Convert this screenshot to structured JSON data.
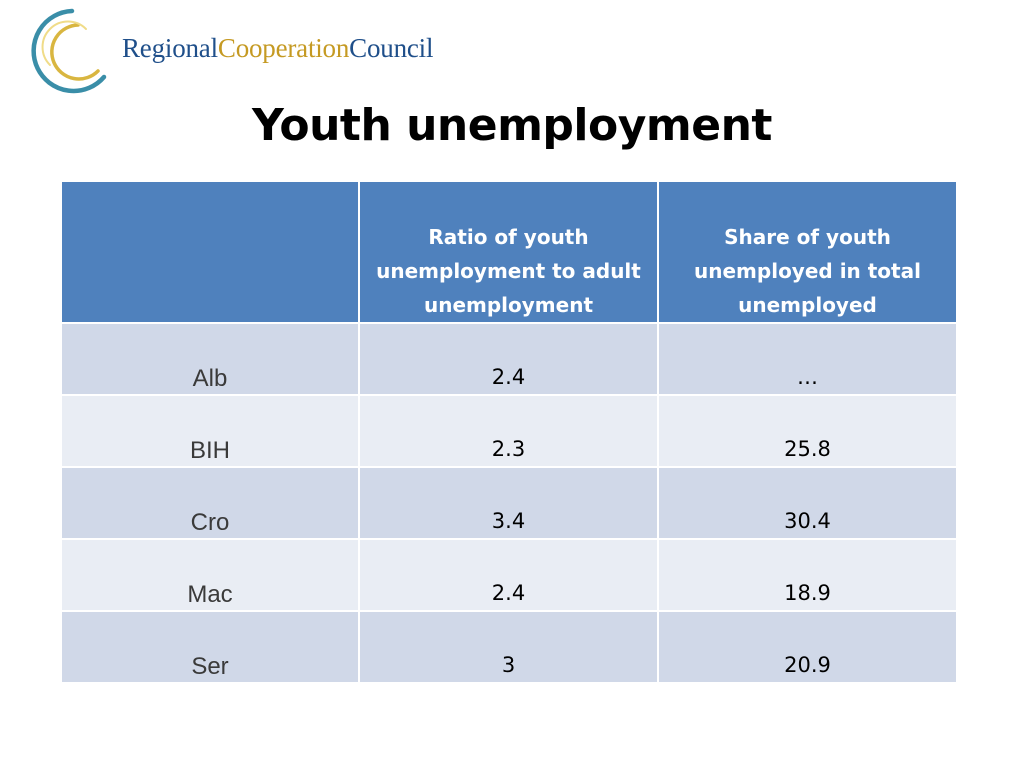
{
  "logo": {
    "part1": "Regional",
    "part2": "Cooperation",
    "part3": "Council",
    "colors": {
      "navy": "#1f4f8a",
      "gold": "#c59a23",
      "teal": "#3a8ea8"
    }
  },
  "title": "Youth unemployment",
  "table": {
    "header": {
      "col0": "",
      "col1": "Ratio of youth unemployment to adult unemployment",
      "col2": "Share of youth unemployed in total unemployed"
    },
    "rows": [
      {
        "country": "Alb",
        "ratio": "2.4",
        "share": "…"
      },
      {
        "country": "BIH",
        "ratio": "2.3",
        "share": "25.8"
      },
      {
        "country": "Cro",
        "ratio": "3.4",
        "share": "30.4"
      },
      {
        "country": "Mac",
        "ratio": "2.4",
        "share": "18.9"
      },
      {
        "country": "Ser",
        "ratio": "3",
        "share": "20.9"
      }
    ],
    "colors": {
      "header": "#4f81bd",
      "row_dark": "#d0d8e8",
      "row_light": "#e9edf4"
    }
  }
}
